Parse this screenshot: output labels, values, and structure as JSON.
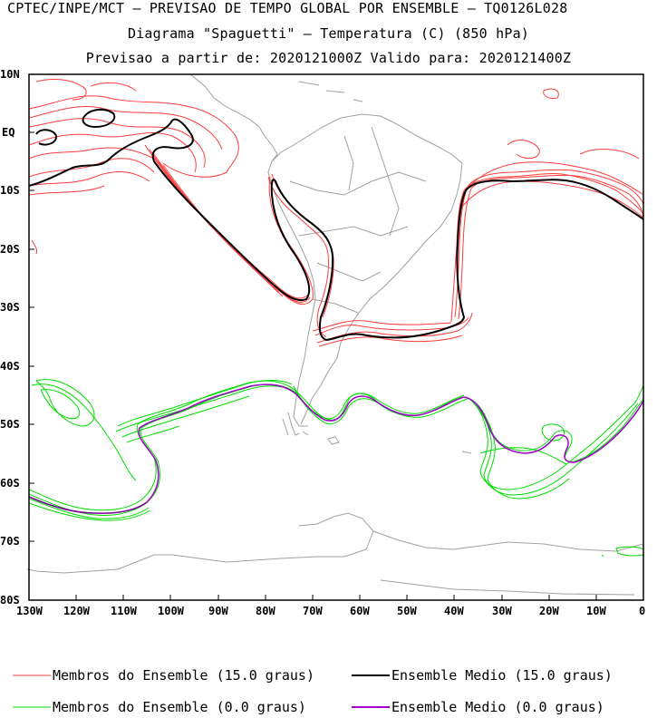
{
  "titles": {
    "line1": "CPTEC/INPE/MCT – PREVISAO DE TEMPO GLOBAL POR ENSEMBLE – TQ0126L028",
    "line2": "Diagrama \"Spaguetti\" – Temperatura (C) (850 hPa)",
    "line3": "Previsao a partir de: 2020121000Z  Valido para: 2020121400Z"
  },
  "axes": {
    "lat_ticks": [
      "10N",
      "EQ",
      "10S",
      "20S",
      "30S",
      "40S",
      "50S",
      "60S",
      "70S",
      "80S"
    ],
    "lon_ticks": [
      "130W",
      "120W",
      "110W",
      "100W",
      "90W",
      "80W",
      "70W",
      "60W",
      "50W",
      "40W",
      "30W",
      "20W",
      "10W",
      "0"
    ]
  },
  "legend": {
    "members_15": "Membros do Ensemble (15.0 graus)",
    "mean_15": "Ensemble Medio (15.0 graus)",
    "members_0": "Membros do Ensemble (0.0 graus)",
    "mean_0": "Ensemble Medio (0.0 graus)"
  },
  "colors": {
    "members_15": "#ff3c3c",
    "mean_15": "#000000",
    "members_0": "#00dc00",
    "mean_0": "#a000c8",
    "coastline": "#a0a0a0"
  }
}
